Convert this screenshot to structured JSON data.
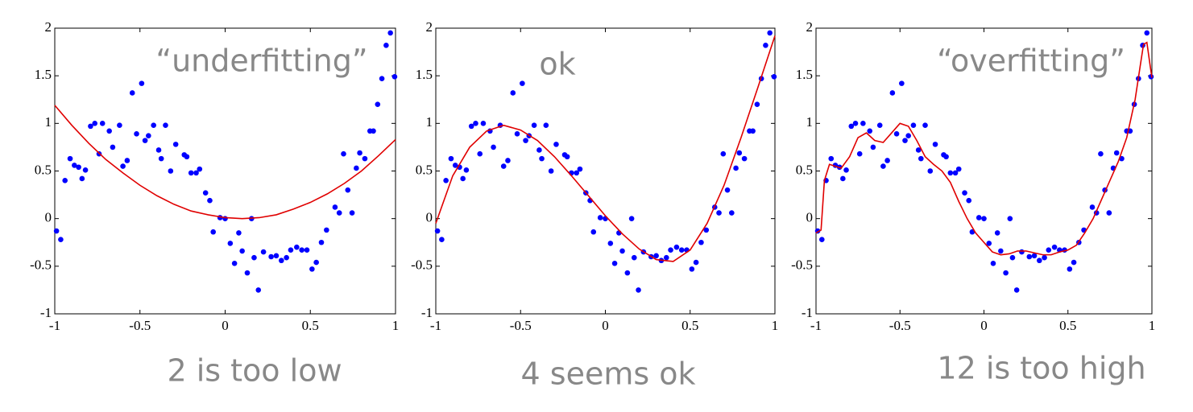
{
  "chart_data": [
    {
      "type": "scatter",
      "annotation": "“underfitting”",
      "caption": "2 is too low",
      "xlim": [
        -1,
        1
      ],
      "ylim": [
        -1,
        2
      ],
      "xticks": [
        -1,
        -0.5,
        0,
        0.5,
        1
      ],
      "yticks": [
        -1,
        -0.5,
        0,
        0.5,
        1,
        1.5,
        2
      ],
      "series": [
        {
          "type": "scatter",
          "color": "#0000ff",
          "x": [
            -0.99,
            -0.965,
            -0.94,
            -0.91,
            -0.885,
            -0.86,
            -0.84,
            -0.82,
            -0.79,
            -0.765,
            -0.74,
            -0.72,
            -0.68,
            -0.66,
            -0.62,
            -0.6,
            -0.575,
            -0.545,
            -0.49,
            -0.52,
            -0.47,
            -0.45,
            -0.42,
            -0.39,
            -0.375,
            -0.35,
            -0.32,
            -0.29,
            -0.24,
            -0.225,
            -0.2,
            -0.17,
            -0.15,
            -0.115,
            -0.09,
            -0.07,
            -0.03,
            0,
            0.03,
            0.055,
            0.08,
            0.1,
            0.13,
            0.155,
            0.17,
            0.195,
            0.225,
            0.27,
            0.3,
            0.33,
            0.36,
            0.385,
            0.42,
            0.45,
            0.48,
            0.51,
            0.535,
            0.565,
            0.595,
            0.645,
            0.67,
            0.695,
            0.72,
            0.745,
            0.77,
            0.79,
            0.82,
            0.85,
            0.87,
            0.895,
            0.92,
            0.945,
            0.97,
            0.995
          ],
          "values": [
            -0.13,
            -0.22,
            0.4,
            0.63,
            0.56,
            0.54,
            0.42,
            0.51,
            0.97,
            1,
            0.68,
            1,
            0.92,
            0.75,
            0.98,
            0.55,
            0.61,
            1.32,
            1.42,
            0.89,
            0.82,
            0.87,
            0.98,
            0.72,
            0.63,
            0.98,
            0.5,
            0.78,
            0.67,
            0.65,
            0.48,
            0.48,
            0.52,
            0.27,
            0.19,
            -0.14,
            0.01,
            0,
            -0.26,
            -0.47,
            -0.15,
            -0.34,
            -0.57,
            0,
            -0.41,
            -0.75,
            -0.35,
            -0.4,
            -0.39,
            -0.44,
            -0.41,
            -0.33,
            -0.3,
            -0.33,
            -0.33,
            -0.53,
            -0.46,
            -0.25,
            -0.12,
            0.12,
            0.06,
            0.68,
            0.3,
            0.06,
            0.53,
            0.69,
            0.63,
            0.92,
            0.92,
            1.2,
            1.47,
            1.82,
            1.95,
            1.49
          ]
        },
        {
          "type": "line",
          "color": "#e00000",
          "x": [
            -1,
            -0.9,
            -0.8,
            -0.7,
            -0.6,
            -0.5,
            -0.4,
            -0.3,
            -0.2,
            -0.1,
            0,
            0.1,
            0.2,
            0.3,
            0.4,
            0.5,
            0.6,
            0.7,
            0.8,
            0.9,
            1
          ],
          "values": [
            1.19,
            0.98,
            0.79,
            0.62,
            0.48,
            0.35,
            0.24,
            0.15,
            0.08,
            0.04,
            0.01,
            0,
            0.01,
            0.04,
            0.1,
            0.17,
            0.26,
            0.37,
            0.5,
            0.66,
            0.83
          ]
        }
      ]
    },
    {
      "type": "scatter",
      "annotation": "ok",
      "caption": "4 seems ok",
      "xlim": [
        -1,
        1
      ],
      "ylim": [
        -1,
        2
      ],
      "xticks": [
        -1,
        -0.5,
        0,
        0.5,
        1
      ],
      "yticks": [
        -1,
        -0.5,
        0,
        0.5,
        1,
        1.5,
        2
      ],
      "series": [
        {
          "type": "scatter",
          "color": "#0000ff",
          "x": [
            -0.99,
            -0.965,
            -0.94,
            -0.91,
            -0.885,
            -0.86,
            -0.84,
            -0.82,
            -0.79,
            -0.765,
            -0.74,
            -0.72,
            -0.68,
            -0.66,
            -0.62,
            -0.6,
            -0.575,
            -0.545,
            -0.49,
            -0.52,
            -0.47,
            -0.45,
            -0.42,
            -0.39,
            -0.375,
            -0.35,
            -0.32,
            -0.29,
            -0.24,
            -0.225,
            -0.2,
            -0.17,
            -0.15,
            -0.115,
            -0.09,
            -0.07,
            -0.03,
            0,
            0.03,
            0.055,
            0.08,
            0.1,
            0.13,
            0.155,
            0.17,
            0.195,
            0.225,
            0.27,
            0.3,
            0.33,
            0.36,
            0.385,
            0.42,
            0.45,
            0.48,
            0.51,
            0.535,
            0.565,
            0.595,
            0.645,
            0.67,
            0.695,
            0.72,
            0.745,
            0.77,
            0.79,
            0.82,
            0.85,
            0.87,
            0.895,
            0.92,
            0.945,
            0.97,
            0.995
          ],
          "values": [
            -0.13,
            -0.22,
            0.4,
            0.63,
            0.56,
            0.54,
            0.42,
            0.51,
            0.97,
            1,
            0.68,
            1,
            0.92,
            0.75,
            0.98,
            0.55,
            0.61,
            1.32,
            1.42,
            0.89,
            0.82,
            0.87,
            0.98,
            0.72,
            0.63,
            0.98,
            0.5,
            0.78,
            0.67,
            0.65,
            0.48,
            0.48,
            0.52,
            0.27,
            0.19,
            -0.14,
            0.01,
            0,
            -0.26,
            -0.47,
            -0.15,
            -0.34,
            -0.57,
            0,
            -0.41,
            -0.75,
            -0.35,
            -0.4,
            -0.39,
            -0.44,
            -0.41,
            -0.33,
            -0.3,
            -0.33,
            -0.33,
            -0.53,
            -0.46,
            -0.25,
            -0.12,
            0.12,
            0.06,
            0.68,
            0.3,
            0.06,
            0.53,
            0.69,
            0.63,
            0.92,
            0.92,
            1.2,
            1.47,
            1.82,
            1.95,
            1.49
          ]
        },
        {
          "type": "line",
          "color": "#e00000",
          "x": [
            -1,
            -0.9,
            -0.8,
            -0.7,
            -0.6,
            -0.5,
            -0.4,
            -0.3,
            -0.2,
            -0.1,
            0,
            0.1,
            0.2,
            0.3,
            0.4,
            0.5,
            0.6,
            0.7,
            0.8,
            0.9,
            1
          ],
          "values": [
            -0.05,
            0.45,
            0.75,
            0.92,
            0.98,
            0.93,
            0.82,
            0.65,
            0.45,
            0.24,
            0.03,
            -0.16,
            -0.32,
            -0.43,
            -0.45,
            -0.33,
            -0.05,
            0.35,
            0.85,
            1.38,
            1.92
          ]
        }
      ]
    },
    {
      "type": "scatter",
      "annotation": "“overfitting”",
      "caption": "12 is too high",
      "xlim": [
        -1,
        1
      ],
      "ylim": [
        -1,
        2
      ],
      "xticks": [
        -1,
        -0.5,
        0,
        0.5,
        1
      ],
      "yticks": [
        -1,
        -0.5,
        0,
        0.5,
        1,
        1.5,
        2
      ],
      "series": [
        {
          "type": "scatter",
          "color": "#0000ff",
          "x": [
            -0.99,
            -0.965,
            -0.94,
            -0.91,
            -0.885,
            -0.86,
            -0.84,
            -0.82,
            -0.79,
            -0.765,
            -0.74,
            -0.72,
            -0.68,
            -0.66,
            -0.62,
            -0.6,
            -0.575,
            -0.545,
            -0.49,
            -0.52,
            -0.47,
            -0.45,
            -0.42,
            -0.39,
            -0.375,
            -0.35,
            -0.32,
            -0.29,
            -0.24,
            -0.225,
            -0.2,
            -0.17,
            -0.15,
            -0.115,
            -0.09,
            -0.07,
            -0.03,
            0,
            0.03,
            0.055,
            0.08,
            0.1,
            0.13,
            0.155,
            0.17,
            0.195,
            0.225,
            0.27,
            0.3,
            0.33,
            0.36,
            0.385,
            0.42,
            0.45,
            0.48,
            0.51,
            0.535,
            0.565,
            0.595,
            0.645,
            0.67,
            0.695,
            0.72,
            0.745,
            0.77,
            0.79,
            0.82,
            0.85,
            0.87,
            0.895,
            0.92,
            0.945,
            0.97,
            0.995
          ],
          "values": [
            -0.13,
            -0.22,
            0.4,
            0.63,
            0.56,
            0.54,
            0.42,
            0.51,
            0.97,
            1,
            0.68,
            1,
            0.92,
            0.75,
            0.98,
            0.55,
            0.61,
            1.32,
            1.42,
            0.89,
            0.82,
            0.87,
            0.98,
            0.72,
            0.63,
            0.98,
            0.5,
            0.78,
            0.67,
            0.65,
            0.48,
            0.48,
            0.52,
            0.27,
            0.19,
            -0.14,
            0.01,
            0,
            -0.26,
            -0.47,
            -0.15,
            -0.34,
            -0.57,
            0,
            -0.41,
            -0.75,
            -0.35,
            -0.4,
            -0.39,
            -0.44,
            -0.41,
            -0.33,
            -0.3,
            -0.33,
            -0.33,
            -0.53,
            -0.46,
            -0.25,
            -0.12,
            0.12,
            0.06,
            0.68,
            0.3,
            0.06,
            0.53,
            0.69,
            0.63,
            0.92,
            0.92,
            1.2,
            1.47,
            1.82,
            1.95,
            1.49
          ]
        },
        {
          "type": "line",
          "color": "#e00000",
          "x": [
            -1,
            -0.97,
            -0.95,
            -0.92,
            -0.85,
            -0.8,
            -0.75,
            -0.7,
            -0.65,
            -0.6,
            -0.55,
            -0.5,
            -0.45,
            -0.4,
            -0.35,
            -0.3,
            -0.25,
            -0.2,
            -0.15,
            -0.1,
            -0.05,
            0,
            0.05,
            0.1,
            0.15,
            0.2,
            0.25,
            0.3,
            0.35,
            0.4,
            0.45,
            0.5,
            0.55,
            0.6,
            0.65,
            0.7,
            0.75,
            0.8,
            0.85,
            0.9,
            0.93,
            0.95,
            0.97,
            0.99,
            1
          ],
          "values": [
            -0.15,
            -0.12,
            0.4,
            0.57,
            0.53,
            0.65,
            0.85,
            0.9,
            0.82,
            0.8,
            0.9,
            1,
            0.97,
            0.82,
            0.65,
            0.57,
            0.5,
            0.38,
            0.18,
            0,
            -0.15,
            -0.25,
            -0.35,
            -0.38,
            -0.37,
            -0.34,
            -0.34,
            -0.36,
            -0.38,
            -0.38,
            -0.35,
            -0.33,
            -0.28,
            -0.15,
            0,
            0.2,
            0.4,
            0.6,
            0.85,
            1.25,
            1.6,
            1.83,
            1.85,
            1.6,
            1.48
          ]
        }
      ]
    }
  ]
}
